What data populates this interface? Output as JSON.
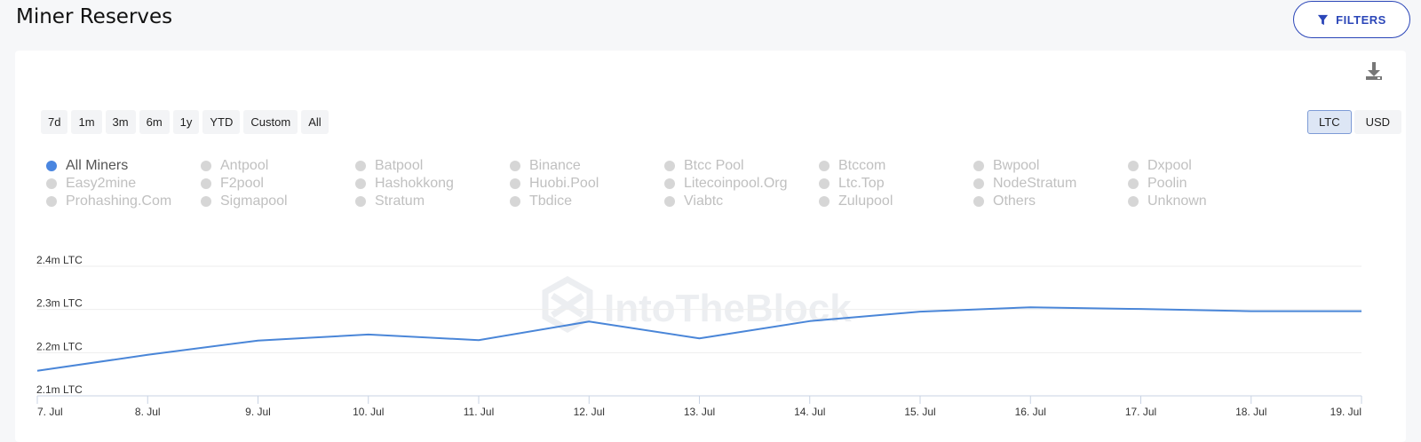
{
  "header": {
    "title": "Miner Reserves",
    "filters_label": "FILTERS"
  },
  "toolbar": {
    "ranges": [
      "7d",
      "1m",
      "3m",
      "6m",
      "1y",
      "YTD",
      "Custom",
      "All"
    ],
    "units": [
      {
        "label": "LTC",
        "active": true
      },
      {
        "label": "USD",
        "active": false
      }
    ]
  },
  "legend": [
    {
      "label": "All Miners",
      "active": true
    },
    {
      "label": "Antpool",
      "active": false
    },
    {
      "label": "Batpool",
      "active": false
    },
    {
      "label": "Binance",
      "active": false
    },
    {
      "label": "Btcc Pool",
      "active": false
    },
    {
      "label": "Btccom",
      "active": false
    },
    {
      "label": "Bwpool",
      "active": false
    },
    {
      "label": "Dxpool",
      "active": false
    },
    {
      "label": "Easy2mine",
      "active": false
    },
    {
      "label": "F2pool",
      "active": false
    },
    {
      "label": "Hashokkong",
      "active": false
    },
    {
      "label": "Huobi.Pool",
      "active": false
    },
    {
      "label": "Litecoinpool.Org",
      "active": false
    },
    {
      "label": "Ltc.Top",
      "active": false
    },
    {
      "label": "NodeStratum",
      "active": false
    },
    {
      "label": "Poolin",
      "active": false
    },
    {
      "label": "Prohashing.Com",
      "active": false
    },
    {
      "label": "Sigmapool",
      "active": false
    },
    {
      "label": "Stratum",
      "active": false
    },
    {
      "label": "Tbdice",
      "active": false
    },
    {
      "label": "Viabtc",
      "active": false
    },
    {
      "label": "Zulupool",
      "active": false
    },
    {
      "label": "Others",
      "active": false
    },
    {
      "label": "Unknown",
      "active": false
    }
  ],
  "watermark": "IntoTheBlock",
  "chart_data": {
    "type": "line",
    "x": [
      "7. Jul",
      "8. Jul",
      "9. Jul",
      "10. Jul",
      "11. Jul",
      "12. Jul",
      "13. Jul",
      "14. Jul",
      "15. Jul",
      "16. Jul",
      "17. Jul",
      "18. Jul",
      "19. Jul"
    ],
    "series": [
      {
        "name": "All Miners",
        "color": "#4a86d8",
        "values": [
          2.158,
          2.195,
          2.228,
          2.242,
          2.229,
          2.272,
          2.233,
          2.273,
          2.295,
          2.305,
          2.301,
          2.296,
          2.296
        ]
      }
    ],
    "y_ticks": [
      {
        "value": 2.4,
        "label": "2.4m LTC"
      },
      {
        "value": 2.3,
        "label": "2.3m LTC"
      },
      {
        "value": 2.2,
        "label": "2.2m LTC"
      },
      {
        "value": 2.1,
        "label": "2.1m LTC"
      }
    ],
    "ylim": [
      2.1,
      2.4
    ],
    "y_unit": "m LTC",
    "grid": true
  }
}
